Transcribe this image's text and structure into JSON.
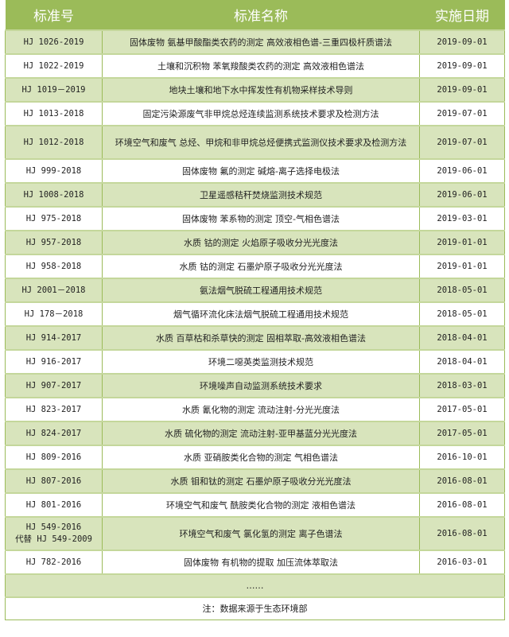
{
  "header": {
    "code": "标准号",
    "name": "标准名称",
    "date": "实施日期"
  },
  "rows": [
    {
      "code": "HJ 1026-2019",
      "name": "固体废物 氨基甲酸酯类农药的测定 高效液相色谱-三重四极杆质谱法",
      "date": "2019-09-01"
    },
    {
      "code": "HJ 1022-2019",
      "name": "土壤和沉积物 苯氧羧酸类农药的测定 高效液相色谱法",
      "date": "2019-09-01"
    },
    {
      "code": "HJ 1019－2019",
      "name": "地块土壤和地下水中挥发性有机物采样技术导则",
      "date": "2019-09-01"
    },
    {
      "code": "HJ 1013-2018",
      "name": "固定污染源废气非甲烷总烃连续监测系统技术要求及检测方法",
      "date": "2019-07-01"
    },
    {
      "code": "HJ 1012-2018",
      "name": "环境空气和废气 总烃、甲烷和非甲烷总烃便携式监测仪技术要求及检测方法",
      "date": "2019-07-01"
    },
    {
      "code": "HJ 999-2018",
      "name": "固体废物 氟的测定 碱熔-离子选择电极法",
      "date": "2019-06-01"
    },
    {
      "code": "HJ 1008-2018",
      "name": "卫星遥感秸秆焚烧监测技术规范",
      "date": "2019-06-01"
    },
    {
      "code": "HJ 975-2018",
      "name": "固体废物 苯系物的测定 顶空-气相色谱法",
      "date": "2019-03-01"
    },
    {
      "code": "HJ 957-2018",
      "name": "水质 钴的测定 火焰原子吸收分光光度法",
      "date": "2019-01-01"
    },
    {
      "code": "HJ 958-2018",
      "name": "水质 钴的测定 石墨炉原子吸收分光光度法",
      "date": "2019-01-01"
    },
    {
      "code": "HJ 2001－2018",
      "name": "氨法烟气脱硫工程通用技术规范",
      "date": "2018-05-01"
    },
    {
      "code": "HJ 178－2018",
      "name": "烟气循环流化床法烟气脱硫工程通用技术规范",
      "date": "2018-05-01"
    },
    {
      "code": "HJ 914-2017",
      "name": "水质 百草枯和杀草快的测定 固相萃取-高效液相色谱法",
      "date": "2018-04-01"
    },
    {
      "code": "HJ 916-2017",
      "name": "环境二噁英类监测技术规范",
      "date": "2018-04-01"
    },
    {
      "code": "HJ 907-2017",
      "name": "环境噪声自动监测系统技术要求",
      "date": "2018-03-01"
    },
    {
      "code": "HJ 823-2017",
      "name": "水质 氰化物的测定 流动注射-分光光度法",
      "date": "2017-05-01"
    },
    {
      "code": "HJ 824-2017",
      "name": "水质 硫化物的测定 流动注射-亚甲基蓝分光光度法",
      "date": "2017-05-01"
    },
    {
      "code": "HJ 809-2016",
      "name": "水质 亚硝胺类化合物的测定 气相色谱法",
      "date": "2016-10-01"
    },
    {
      "code": "HJ 807-2016",
      "name": "水质 钼和钛的测定 石墨炉原子吸收分光光度法",
      "date": "2016-08-01"
    },
    {
      "code": "HJ 801-2016",
      "name": "环境空气和废气 酰胺类化合物的测定 液相色谱法",
      "date": "2016-08-01"
    },
    {
      "code": "HJ 549-2016",
      "code2": "代替 HJ 549-2009",
      "name": "环境空气和废气 氯化氢的测定 离子色谱法",
      "date": "2016-08-01"
    },
    {
      "code": "HJ 782-2016",
      "name": "固体废物 有机物的提取 加压流体萃取法",
      "date": "2016-03-01"
    }
  ],
  "ellipsis": "……",
  "note": "注：数据来源于生态环境部",
  "colors": {
    "header": "#9bbb59",
    "alt_row": "#d8e4bc"
  }
}
